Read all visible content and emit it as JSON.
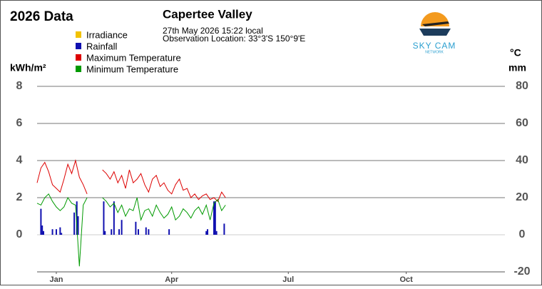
{
  "chart_data": {
    "type": "line",
    "title": "2026 Data",
    "station": "Capertee Valley",
    "timestamp": "27th May 2026  15:22 local",
    "location": "Observation Location: 33°3'S 150°9'E",
    "logo": {
      "brand": "SKY CAM",
      "tagline": "NETWORK"
    },
    "y_label": "kWh/m²",
    "y2_labels": [
      "°C",
      "mm"
    ],
    "xlim": [
      0,
      365
    ],
    "xticks": [
      {
        "value": 15,
        "label": "Jan"
      },
      {
        "value": 105,
        "label": "Apr"
      },
      {
        "value": 196,
        "label": "Jul"
      },
      {
        "value": 288,
        "label": "Oct"
      }
    ],
    "ylim": [
      -2,
      8
    ],
    "yticks": [
      0,
      2,
      4,
      6,
      8
    ],
    "y2lim": [
      -20,
      80
    ],
    "y2ticks": [
      -20,
      0,
      20,
      40,
      60,
      80
    ],
    "grid": true,
    "x": [
      0,
      3,
      6,
      9,
      12,
      15,
      18,
      21,
      24,
      27,
      30,
      33,
      36,
      39,
      42,
      45,
      48,
      51,
      54,
      57,
      60,
      63,
      66,
      69,
      72,
      75,
      78,
      81,
      84,
      87,
      90,
      93,
      96,
      99,
      102,
      105,
      108,
      111,
      114,
      117,
      120,
      123,
      126,
      129,
      132,
      135,
      138,
      141,
      144,
      147
    ],
    "series": [
      {
        "name": "Irradiance",
        "color": "#f2c200",
        "values": [
          null,
          null,
          null,
          null,
          null,
          null,
          null,
          null,
          null,
          null,
          null,
          null,
          null,
          null,
          null,
          null,
          null,
          null,
          null,
          null,
          null,
          null,
          null,
          null,
          null,
          null,
          null,
          null,
          null,
          null,
          null,
          null,
          null,
          null,
          null,
          null,
          null,
          null,
          null,
          null,
          null,
          null,
          null,
          null,
          null,
          null,
          null,
          null,
          null,
          null
        ]
      },
      {
        "name": "Rainfall",
        "color": "#1010b0",
        "axis": "y2",
        "x": [
          3,
          4,
          5,
          12,
          15,
          18,
          19,
          29,
          31,
          32,
          52,
          53,
          58,
          60,
          64,
          66,
          77,
          79,
          85,
          87,
          103,
          132,
          133,
          138,
          139,
          140,
          146
        ],
        "values": [
          14,
          5,
          2,
          3,
          3,
          4,
          1,
          12,
          18,
          10,
          18,
          2,
          3,
          18,
          3,
          8,
          7,
          3,
          4,
          3,
          3,
          2,
          3,
          18,
          18,
          2,
          6
        ]
      },
      {
        "name": "Maximum Temperature",
        "color": "#dd0000",
        "axis": "y2",
        "values": [
          28,
          36,
          39,
          34,
          27,
          25,
          23,
          30,
          38,
          33,
          40,
          31,
          27,
          22,
          null,
          null,
          null,
          35,
          33,
          30,
          34,
          28,
          32,
          25,
          35,
          28,
          30,
          33,
          27,
          23,
          30,
          32,
          26,
          28,
          24,
          22,
          27,
          30,
          24,
          25,
          20,
          22,
          19,
          21,
          22,
          19,
          20,
          18,
          23,
          20
        ]
      },
      {
        "name": "Minimum Temperature",
        "color": "#009a00",
        "axis": "y2",
        "values": [
          17,
          16,
          20,
          22,
          18,
          15,
          13,
          15,
          20,
          17,
          16,
          -17,
          16,
          20,
          null,
          null,
          null,
          20,
          18,
          15,
          17,
          12,
          16,
          10,
          14,
          13,
          20,
          8,
          13,
          14,
          10,
          16,
          12,
          9,
          11,
          15,
          8,
          10,
          14,
          12,
          9,
          13,
          15,
          11,
          16,
          8,
          17,
          19,
          13,
          16
        ]
      }
    ]
  }
}
